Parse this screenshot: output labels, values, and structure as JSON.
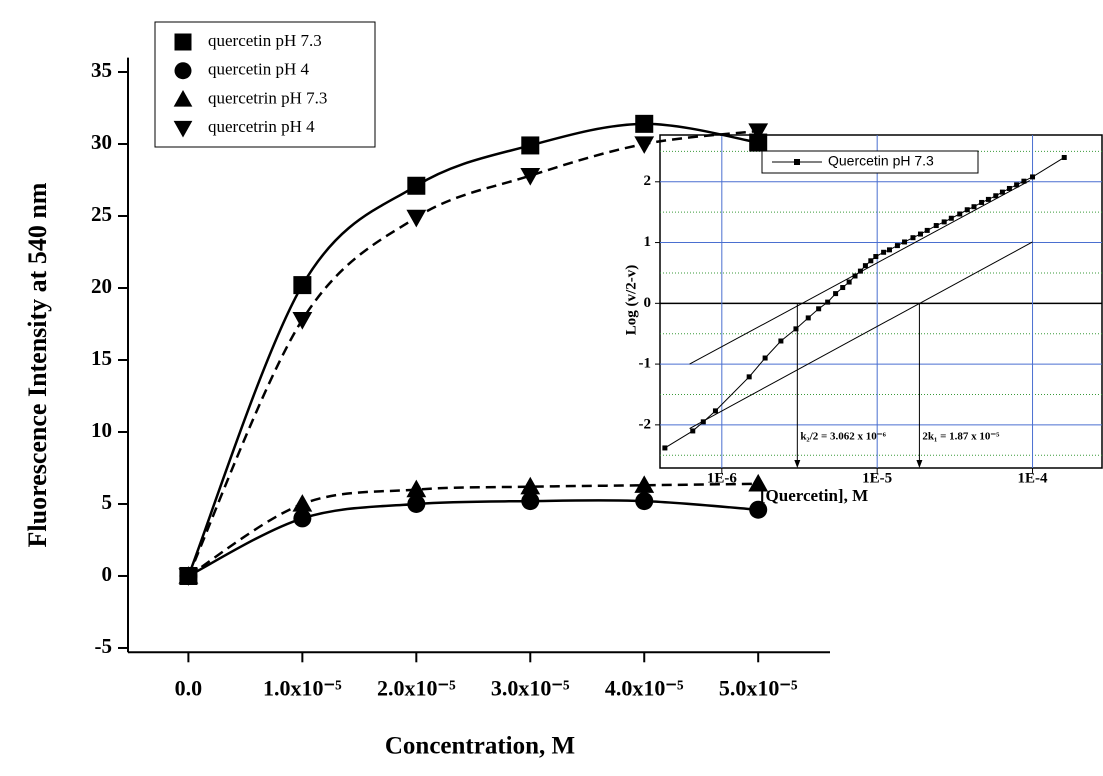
{
  "chart_data": [
    {
      "type": "scatter",
      "xlabel": "Concentration, M",
      "ylabel": "Fluorescence Intensity at 540 nm",
      "x": [
        0,
        1e-05,
        2e-05,
        3e-05,
        4e-05,
        5e-05
      ],
      "xlim": [
        -5.3e-06,
        5.63e-05
      ],
      "xticks": [
        {
          "value": 0,
          "label": "0.0"
        },
        {
          "value": 1e-05,
          "label": "1.0x10⁻⁵"
        },
        {
          "value": 2e-05,
          "label": "2.0x10⁻⁵"
        },
        {
          "value": 3e-05,
          "label": "3.0x10⁻⁵"
        },
        {
          "value": 4e-05,
          "label": "4.0x10⁻⁵"
        },
        {
          "value": 5e-05,
          "label": "5.0x10⁻⁵"
        }
      ],
      "ylim": [
        -5.3,
        36
      ],
      "yticks": [
        -5,
        0,
        5,
        10,
        15,
        20,
        25,
        30,
        35
      ],
      "legend": "top-left",
      "series": [
        {
          "name": "quercetin pH 7.3",
          "color": "#000000",
          "marker": "square",
          "line_style": "solid",
          "values": [
            0,
            20.2,
            27.1,
            29.9,
            31.4,
            30.1
          ]
        },
        {
          "name": "quercetin pH 4",
          "color": "#000000",
          "marker": "circle",
          "line_style": "solid",
          "values": [
            0,
            4.0,
            5.0,
            5.2,
            5.2,
            4.6
          ]
        },
        {
          "name": "quercetrin pH 7.3",
          "color": "#000000",
          "marker": "triangle-up",
          "line_style": "dashed",
          "values": [
            0,
            5.0,
            6.0,
            6.2,
            6.3,
            6.4
          ]
        },
        {
          "name": "quercetrin pH 4",
          "color": "#000000",
          "marker": "triangle-down",
          "line_style": "dashed",
          "values": [
            0,
            17.8,
            24.9,
            27.8,
            30.0,
            30.9
          ]
        }
      ]
    },
    {
      "type": "line",
      "log_x": true,
      "xlabel": "[Quercetin], M",
      "ylabel": "Log (v/2-v)",
      "xlim": [
        4e-07,
        0.00028
      ],
      "xticks": [
        {
          "value": 1e-06,
          "label": "1E-6"
        },
        {
          "value": 1e-05,
          "label": "1E-5"
        },
        {
          "value": 0.0001,
          "label": "1E-4"
        }
      ],
      "ylim": [
        -2.71,
        2.77
      ],
      "yticks": [
        -2,
        -1,
        0,
        1,
        2
      ],
      "minor_yticks": [
        -2.5,
        -1.5,
        -0.5,
        0.5,
        1.5,
        2.5
      ],
      "grid": true,
      "legend": "top",
      "x": [
        4.3e-07,
        6.5e-07,
        7.6e-07,
        9.1e-07,
        1.5e-06,
        1.9e-06,
        2.4e-06,
        3e-06,
        3.6e-06,
        4.2e-06,
        4.8e-06,
        5.4e-06,
        6e-06,
        6.6e-06,
        7.2e-06,
        7.8e-06,
        8.4e-06,
        9.1e-06,
        9.8e-06,
        1.1e-05,
        1.2e-05,
        1.35e-05,
        1.5e-05,
        1.7e-05,
        1.9e-05,
        2.1e-05,
        2.4e-05,
        2.7e-05,
        3e-05,
        3.4e-05,
        3.8e-05,
        4.2e-05,
        4.7e-05,
        5.2e-05,
        5.8e-05,
        6.4e-05,
        7.1e-05,
        7.9e-05,
        8.8e-05,
        0.0001,
        0.00016
      ],
      "series": [
        {
          "name": "Quercetin pH 7.3",
          "color": "#000000",
          "marker": "square",
          "values": [
            -2.38,
            -2.1,
            -1.95,
            -1.77,
            -1.21,
            -0.9,
            -0.62,
            -0.42,
            -0.24,
            -0.09,
            0.02,
            0.16,
            0.26,
            0.35,
            0.45,
            0.53,
            0.62,
            0.7,
            0.77,
            0.84,
            0.88,
            0.95,
            1.01,
            1.08,
            1.14,
            1.2,
            1.28,
            1.34,
            1.4,
            1.47,
            1.54,
            1.59,
            1.66,
            1.71,
            1.77,
            1.83,
            1.89,
            1.95,
            2.01,
            2.08,
            2.4
          ]
        }
      ],
      "asymptotes": [
        {
          "x": [
            6.2e-07,
            9.6e-05
          ],
          "y": [
            -1.0,
            2.02
          ]
        },
        {
          "x": [
            6.2e-07,
            0.0001
          ],
          "y": [
            -2.06,
            1.01
          ]
        }
      ],
      "annotations": [
        {
          "text": "k₂/2 = 3.062 x 10⁻⁶",
          "x": 3.062e-06
        },
        {
          "text": "2k₁ = 1.87 x 10⁻⁵",
          "x": 1.87e-05
        }
      ]
    }
  ]
}
